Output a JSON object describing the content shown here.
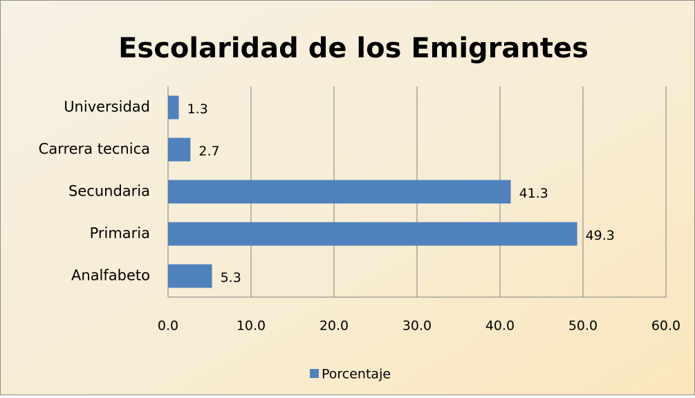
{
  "chart_data": {
    "type": "barh",
    "title": "Escolaridad de los Emigrantes",
    "categories": [
      "Universidad",
      "Carrera tecnica",
      "Secundaria",
      "Primaria",
      "Analfabeto"
    ],
    "series": [
      {
        "name": "Porcentaje",
        "color": "#4f81bd",
        "values": [
          1.3,
          2.7,
          41.3,
          49.3,
          5.3
        ]
      }
    ],
    "xlim": [
      0,
      60
    ],
    "xticks": [
      {
        "value": 0,
        "label": "0.0"
      },
      {
        "value": 10,
        "label": "10.0"
      },
      {
        "value": 20,
        "label": "20.0"
      },
      {
        "value": 30,
        "label": "30.0"
      },
      {
        "value": 40,
        "label": "40.0"
      },
      {
        "value": 50,
        "label": "50.0"
      },
      {
        "value": 60,
        "label": "60.0"
      }
    ],
    "grid": true,
    "legend": "bottom"
  }
}
